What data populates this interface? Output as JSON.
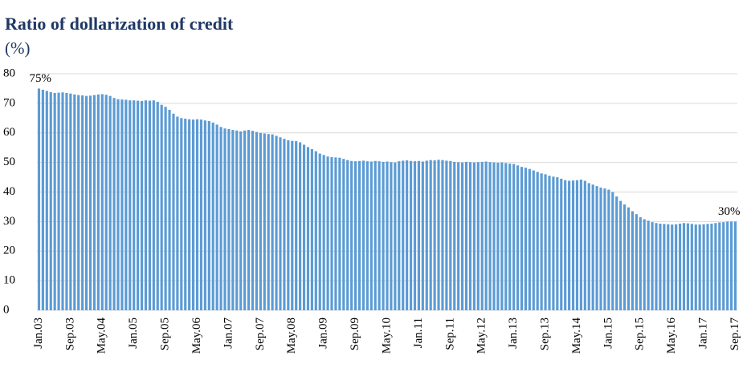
{
  "chart_data": {
    "type": "bar",
    "title": "Ratio of dollarization of credit",
    "subtitle": "(%)",
    "categories": [
      "Jan.03",
      null,
      null,
      null,
      null,
      null,
      null,
      null,
      "Sep.03",
      null,
      null,
      null,
      null,
      null,
      null,
      null,
      "May.04",
      null,
      null,
      null,
      null,
      null,
      null,
      null,
      "Jan.05",
      null,
      null,
      null,
      null,
      null,
      null,
      null,
      "Sep.05",
      null,
      null,
      null,
      null,
      null,
      null,
      null,
      "May.06",
      null,
      null,
      null,
      null,
      null,
      null,
      null,
      "Jan.07",
      null,
      null,
      null,
      null,
      null,
      null,
      null,
      "Sep.07",
      null,
      null,
      null,
      null,
      null,
      null,
      null,
      "May.08",
      null,
      null,
      null,
      null,
      null,
      null,
      null,
      "Jan.09",
      null,
      null,
      null,
      null,
      null,
      null,
      null,
      "Sep.09",
      null,
      null,
      null,
      null,
      null,
      null,
      null,
      "May.10",
      null,
      null,
      null,
      null,
      null,
      null,
      null,
      "Jan.11",
      null,
      null,
      null,
      null,
      null,
      null,
      null,
      "Sep.11",
      null,
      null,
      null,
      null,
      null,
      null,
      null,
      "May.12",
      null,
      null,
      null,
      null,
      null,
      null,
      null,
      "Jan.13",
      null,
      null,
      null,
      null,
      null,
      null,
      null,
      "Sep.13",
      null,
      null,
      null,
      null,
      null,
      null,
      null,
      "May.14",
      null,
      null,
      null,
      null,
      null,
      null,
      null,
      "Jan.15",
      null,
      null,
      null,
      null,
      null,
      null,
      null,
      "Sep.15",
      null,
      null,
      null,
      null,
      null,
      null,
      null,
      "May.16",
      null,
      null,
      null,
      null,
      null,
      null,
      null,
      "Jan.17",
      null,
      null,
      null,
      null,
      null,
      null,
      null,
      "Sep.17"
    ],
    "values": [
      75,
      74.6,
      74.2,
      73.8,
      73.5,
      73.6,
      73.7,
      73.5,
      73.3,
      73.0,
      72.8,
      72.7,
      72.5,
      72.6,
      72.8,
      73.0,
      73.1,
      72.9,
      72.5,
      71.8,
      71.4,
      71.3,
      71.2,
      71.0,
      71.0,
      70.9,
      70.8,
      71.0,
      70.9,
      71.0,
      70.5,
      69.5,
      68.8,
      67.8,
      66.5,
      65.5,
      65.0,
      64.8,
      64.6,
      64.5,
      64.6,
      64.5,
      64.2,
      64.0,
      63.5,
      62.8,
      62.0,
      61.5,
      61.3,
      61.0,
      60.8,
      60.5,
      60.8,
      61.0,
      60.7,
      60.3,
      60.0,
      59.8,
      59.6,
      59.5,
      59.0,
      58.5,
      58.0,
      57.5,
      57.3,
      57.2,
      56.8,
      56.0,
      55.2,
      54.5,
      53.8,
      53.0,
      52.5,
      52.0,
      51.8,
      51.7,
      51.6,
      51.2,
      50.8,
      50.5,
      50.4,
      50.5,
      50.6,
      50.4,
      50.3,
      50.5,
      50.4,
      50.2,
      50.3,
      50.1,
      50.0,
      50.4,
      50.6,
      50.7,
      50.5,
      50.4,
      50.5,
      50.3,
      50.6,
      50.8,
      50.7,
      50.9,
      50.8,
      50.6,
      50.5,
      50.2,
      50.1,
      50.0,
      50.2,
      50.1,
      50.0,
      50.1,
      50.2,
      50.3,
      50.1,
      50.0,
      49.9,
      50.0,
      49.8,
      49.6,
      49.5,
      49.0,
      48.5,
      48.2,
      47.8,
      47.3,
      46.8,
      46.3,
      46.0,
      45.5,
      45.2,
      45.0,
      44.5,
      44.0,
      43.8,
      43.9,
      44.0,
      44.2,
      43.8,
      43.0,
      42.5,
      42.0,
      41.5,
      41.2,
      40.8,
      40.0,
      38.5,
      37.0,
      35.8,
      34.8,
      33.5,
      32.5,
      31.5,
      30.8,
      30.3,
      29.8,
      29.5,
      29.3,
      29.2,
      29.1,
      29.0,
      29.1,
      29.3,
      29.5,
      29.4,
      29.2,
      29.0,
      29.0,
      29.1,
      29.2,
      29.3,
      29.5,
      29.7,
      29.8,
      30.0,
      30.0,
      30
    ],
    "value_labels": [
      "75%",
      null,
      null,
      null,
      null,
      null,
      null,
      null,
      null,
      null,
      null,
      null,
      null,
      null,
      null,
      null,
      null,
      null,
      null,
      null,
      null,
      null,
      null,
      null,
      null,
      null,
      null,
      null,
      null,
      null,
      null,
      null,
      null,
      null,
      null,
      null,
      null,
      null,
      null,
      null,
      null,
      null,
      null,
      null,
      null,
      null,
      null,
      null,
      null,
      null,
      null,
      null,
      null,
      null,
      null,
      null,
      null,
      null,
      null,
      null,
      null,
      null,
      null,
      null,
      null,
      null,
      null,
      null,
      null,
      null,
      null,
      null,
      null,
      null,
      null,
      null,
      null,
      null,
      null,
      null,
      null,
      null,
      null,
      null,
      null,
      null,
      null,
      null,
      null,
      null,
      null,
      null,
      null,
      null,
      null,
      null,
      null,
      null,
      null,
      null,
      null,
      null,
      null,
      null,
      null,
      null,
      null,
      null,
      null,
      null,
      null,
      null,
      null,
      null,
      null,
      null,
      null,
      null,
      null,
      null,
      null,
      null,
      null,
      null,
      null,
      null,
      null,
      null,
      null,
      null,
      null,
      null,
      null,
      null,
      null,
      null,
      null,
      null,
      null,
      null,
      null,
      null,
      null,
      null,
      null,
      null,
      null,
      null,
      null,
      null,
      null,
      null,
      null,
      null,
      null,
      null,
      null,
      null,
      null,
      null,
      null,
      null,
      null,
      null,
      null,
      null,
      null,
      null,
      null,
      null,
      null,
      null,
      null,
      null,
      null,
      null,
      "30%"
    ],
    "color": "#5b9bd5",
    "ylim": [
      0,
      80
    ],
    "yticks": [
      0,
      10,
      20,
      30,
      40,
      50,
      60,
      70,
      80
    ],
    "grid": true
  }
}
